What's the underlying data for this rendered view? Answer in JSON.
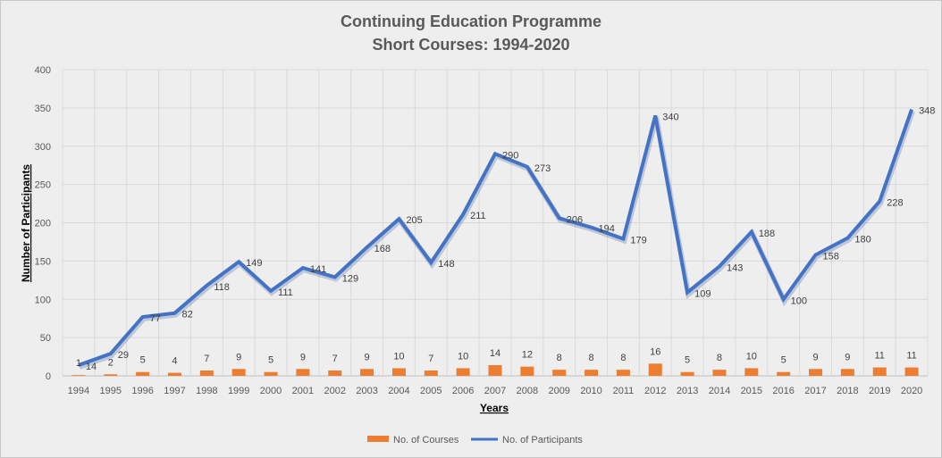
{
  "chart_data": {
    "type": "bar+line",
    "title": [
      "Continuing Education Programme",
      "Short Courses: 1994-2020"
    ],
    "xlabel": "Years",
    "ylabel": "Number of Participants",
    "ylim": [
      0,
      400
    ],
    "yticks": [
      0,
      50,
      100,
      150,
      200,
      250,
      300,
      350,
      400
    ],
    "grid": true,
    "legend_position": "bottom",
    "categories": [
      "1994",
      "1995",
      "1996",
      "1997",
      "1998",
      "1999",
      "2000",
      "2001",
      "2002",
      "2003",
      "2004",
      "2005",
      "2006",
      "2007",
      "2008",
      "2009",
      "2010",
      "2011",
      "2012",
      "2013",
      "2014",
      "2015",
      "2016",
      "2017",
      "2018",
      "2019",
      "2020"
    ],
    "series": [
      {
        "name": "No. of Courses",
        "type": "bar",
        "color": "#ED7D31",
        "values": [
          1,
          2,
          5,
          4,
          7,
          9,
          5,
          9,
          7,
          9,
          10,
          7,
          10,
          14,
          12,
          8,
          8,
          8,
          16,
          5,
          8,
          10,
          5,
          9,
          9,
          11,
          11
        ]
      },
      {
        "name": "No. of Participants",
        "type": "line",
        "color": "#4472C4",
        "values": [
          14,
          29,
          77,
          82,
          118,
          149,
          111,
          141,
          129,
          168,
          205,
          148,
          211,
          290,
          273,
          206,
          194,
          179,
          340,
          109,
          143,
          188,
          100,
          158,
          180,
          228,
          348
        ]
      }
    ]
  }
}
